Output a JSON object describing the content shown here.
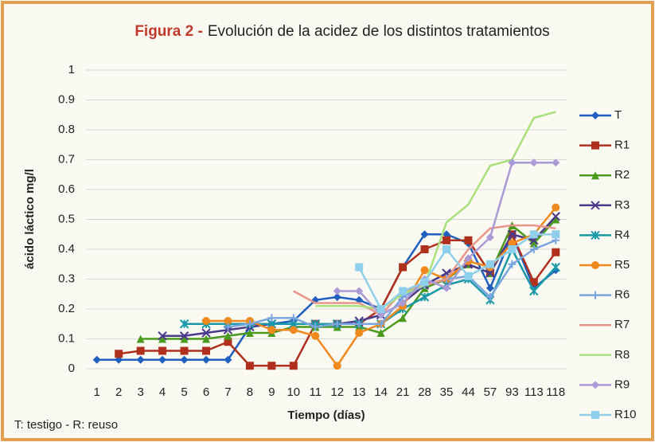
{
  "chart_data": {
    "type": "line",
    "title_parts": [
      "Figura 2 -",
      "Evolución de la acidez de los distintos tratamientos"
    ],
    "ylabel": "ácido láctico mg/l",
    "xlabel": "Tiempo (días)",
    "note": "T: testigo - R: reuso",
    "categories": [
      "1",
      "2",
      "3",
      "4",
      "5",
      "6",
      "7",
      "8",
      "9",
      "10",
      "11",
      "12",
      "13",
      "14",
      "21",
      "28",
      "35",
      "44",
      "57",
      "93",
      "113",
      "118"
    ],
    "ylim": [
      0,
      1
    ],
    "yticks": [
      0,
      0.1,
      0.2,
      0.3,
      0.4,
      0.5,
      0.6,
      0.7,
      0.8,
      0.9,
      1
    ],
    "grid": true,
    "legend": "right",
    "series": [
      {
        "name": "T",
        "color": "#1f5fbf",
        "marker": "diamond",
        "values": [
          0.03,
          0.03,
          0.03,
          0.03,
          0.03,
          0.03,
          0.03,
          0.14,
          0.15,
          0.16,
          0.23,
          0.24,
          0.23,
          0.2,
          0.34,
          0.45,
          0.45,
          0.42,
          0.27,
          0.45,
          0.27,
          0.33
        ]
      },
      {
        "name": "R1",
        "color": "#b0301e",
        "marker": "square",
        "values": [
          null,
          0.05,
          0.06,
          0.06,
          0.06,
          0.06,
          0.09,
          0.01,
          0.01,
          0.01,
          0.15,
          0.15,
          0.15,
          0.2,
          0.34,
          0.4,
          0.43,
          0.43,
          0.32,
          0.45,
          0.29,
          0.39
        ]
      },
      {
        "name": "R2",
        "color": "#4a9a1e",
        "marker": "triangle",
        "values": [
          null,
          null,
          0.1,
          0.1,
          0.1,
          0.1,
          0.11,
          0.12,
          0.12,
          0.14,
          0.14,
          0.14,
          0.14,
          0.12,
          0.17,
          0.27,
          0.3,
          0.35,
          0.32,
          0.48,
          0.42,
          0.5
        ]
      },
      {
        "name": "R3",
        "color": "#4b3a8c",
        "marker": "x",
        "values": [
          null,
          null,
          null,
          0.11,
          0.11,
          0.12,
          0.13,
          0.14,
          0.15,
          0.15,
          0.15,
          0.15,
          0.16,
          0.18,
          0.22,
          0.28,
          0.32,
          0.35,
          0.32,
          0.45,
          0.43,
          0.51
        ]
      },
      {
        "name": "R4",
        "color": "#1a9aa8",
        "marker": "star",
        "values": [
          null,
          null,
          null,
          null,
          0.15,
          0.15,
          0.15,
          0.15,
          0.15,
          0.15,
          0.15,
          0.15,
          0.15,
          0.15,
          0.2,
          0.24,
          0.28,
          0.3,
          0.23,
          0.4,
          0.26,
          0.34
        ]
      },
      {
        "name": "R5",
        "color": "#f08a1e",
        "marker": "circle",
        "values": [
          null,
          null,
          null,
          null,
          null,
          0.16,
          0.16,
          0.16,
          0.13,
          0.13,
          0.11,
          0.01,
          0.12,
          0.15,
          0.21,
          0.33,
          0.3,
          0.36,
          0.34,
          0.42,
          0.45,
          0.54
        ]
      },
      {
        "name": "R6",
        "color": "#7aa6e0",
        "marker": "plus",
        "values": [
          null,
          null,
          null,
          null,
          null,
          null,
          0.14,
          0.15,
          0.17,
          0.17,
          0.14,
          0.15,
          0.15,
          0.15,
          0.24,
          0.28,
          0.3,
          0.31,
          0.24,
          0.35,
          0.4,
          0.43
        ]
      },
      {
        "name": "R7",
        "color": "#e8968a",
        "marker": "none",
        "values": [
          null,
          null,
          null,
          null,
          null,
          null,
          null,
          null,
          null,
          0.26,
          0.22,
          0.22,
          0.22,
          0.18,
          0.26,
          0.28,
          0.3,
          0.4,
          0.47,
          0.48,
          0.48,
          0.47
        ]
      },
      {
        "name": "R8",
        "color": "#a8e07a",
        "marker": "none",
        "values": [
          null,
          null,
          null,
          null,
          null,
          null,
          null,
          null,
          null,
          null,
          0.21,
          0.21,
          0.21,
          0.2,
          0.25,
          0.28,
          0.49,
          0.55,
          0.68,
          0.7,
          0.84,
          0.86
        ]
      },
      {
        "name": "R9",
        "color": "#a99ad8",
        "marker": "diamond",
        "values": [
          null,
          null,
          null,
          null,
          null,
          null,
          null,
          null,
          null,
          null,
          null,
          0.26,
          0.26,
          0.18,
          0.22,
          0.3,
          0.27,
          0.37,
          0.44,
          0.69,
          0.69,
          0.69
        ]
      },
      {
        "name": "R10",
        "color": "#8ed0ec",
        "marker": "square",
        "values": [
          null,
          null,
          null,
          null,
          null,
          null,
          null,
          null,
          null,
          null,
          null,
          null,
          0.34,
          0.2,
          0.26,
          0.29,
          0.4,
          0.31,
          0.35,
          0.4,
          0.45,
          0.45
        ]
      }
    ]
  }
}
